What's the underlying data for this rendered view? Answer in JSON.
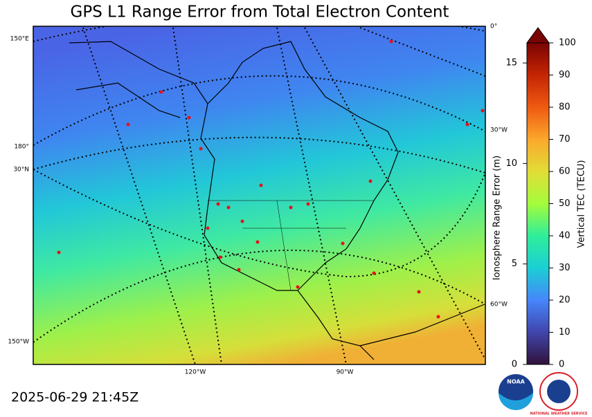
{
  "header": {
    "title": "GPS L1 Range Error from Total Electron Content",
    "timestamp": "2025-06-29 21:45Z"
  },
  "map": {
    "graticule_labels": [
      "150°E",
      "180°",
      "30°N",
      "150°W",
      "0°",
      "30°W",
      "60°W",
      "120°W",
      "90°W"
    ]
  },
  "colorbar": {
    "left_label": "Ionosphere Range Error (m)",
    "left_lim": [
      0,
      16
    ],
    "left_ticks": [
      0,
      5,
      10,
      15
    ],
    "right_label": "Vertical TEC (TECU)",
    "right_lim": [
      0,
      100
    ],
    "right_ticks": [
      0,
      10,
      20,
      30,
      40,
      50,
      60,
      70,
      80,
      90,
      100
    ]
  },
  "logos": {
    "noaa": "NOAA",
    "nws": "NATIONAL WEATHER SERVICE"
  }
}
